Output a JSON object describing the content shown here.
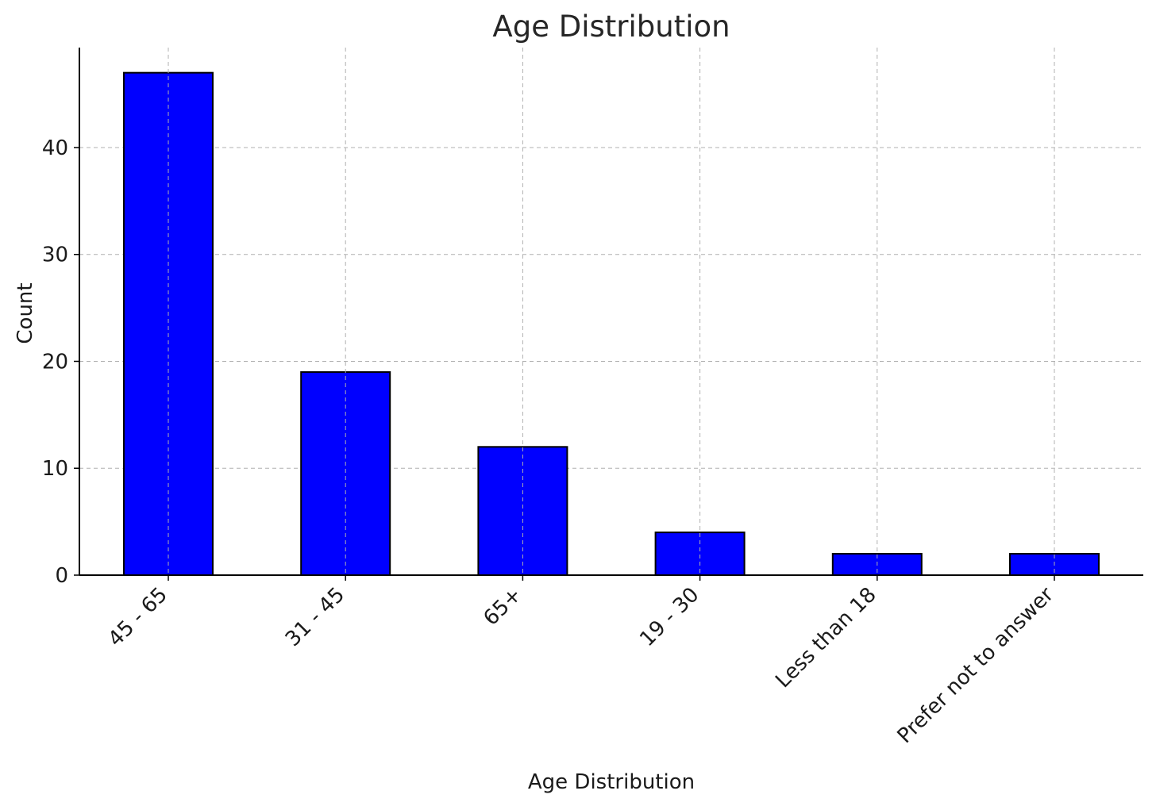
{
  "chart_data": {
    "type": "bar",
    "title": "Age Distribution",
    "xlabel": "Age Distribution",
    "ylabel": "Count",
    "categories": [
      "45 - 65",
      "31 - 45",
      "65+",
      "19 - 30",
      "Less than 18",
      "Prefer not to answer"
    ],
    "values": [
      47,
      19,
      12,
      4,
      2,
      2
    ],
    "ylim": [
      0,
      49.35
    ],
    "yticks": [
      0,
      10,
      20,
      30,
      40
    ],
    "ytick_labels": [
      "0",
      "10",
      "20",
      "30",
      "40"
    ],
    "grid": true,
    "bar_color": "#0000ff",
    "bar_edge_color": "#000000"
  }
}
